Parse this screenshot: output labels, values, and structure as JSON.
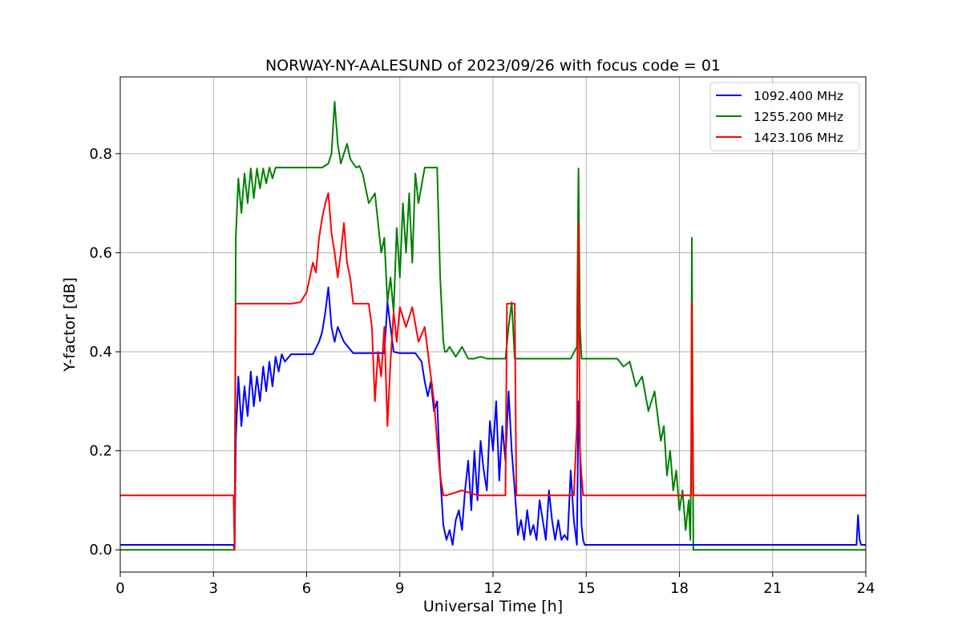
{
  "chart_data": {
    "type": "line",
    "title": "NORWAY-NY-AALESUND of 2023/09/26 with focus code = 01",
    "xlabel": "Universal Time [h]",
    "ylabel": "Y-factor [dB]",
    "xlim": [
      0,
      24
    ],
    "ylim": [
      -0.045,
      0.955
    ],
    "xticks": [
      0,
      3,
      6,
      9,
      12,
      15,
      18,
      21,
      24
    ],
    "xtick_labels": [
      "0",
      "3",
      "6",
      "9",
      "12",
      "15",
      "18",
      "21",
      "24"
    ],
    "yticks": [
      0.0,
      0.2,
      0.4,
      0.6,
      0.8
    ],
    "ytick_labels": [
      "0.0",
      "0.2",
      "0.4",
      "0.6",
      "0.8"
    ],
    "grid": true,
    "legend_position": "top-right",
    "series": [
      {
        "name": "1092.400 MHz",
        "color": "#0000ff",
        "x": [
          0,
          3.65,
          3.68,
          3.72,
          3.8,
          3.9,
          4.0,
          4.1,
          4.2,
          4.3,
          4.4,
          4.5,
          4.6,
          4.7,
          4.8,
          4.9,
          5.0,
          5.1,
          5.2,
          5.3,
          5.5,
          5.8,
          6.2,
          6.4,
          6.5,
          6.6,
          6.7,
          6.8,
          6.9,
          7.0,
          7.2,
          7.5,
          8.0,
          8.5,
          8.6,
          8.7,
          8.8,
          9.0,
          9.5,
          9.7,
          9.8,
          9.9,
          10.0,
          10.1,
          10.2,
          10.3,
          10.35,
          10.4,
          10.5,
          10.6,
          10.7,
          10.8,
          10.9,
          11.0,
          11.1,
          11.2,
          11.3,
          11.4,
          11.5,
          11.6,
          11.7,
          11.8,
          11.9,
          12.0,
          12.1,
          12.2,
          12.3,
          12.4,
          12.5,
          12.6,
          12.7,
          12.8,
          12.9,
          13.0,
          13.1,
          13.2,
          13.3,
          13.4,
          13.5,
          13.6,
          13.7,
          13.8,
          13.9,
          14.0,
          14.1,
          14.2,
          14.3,
          14.4,
          14.5,
          14.6,
          14.7,
          14.75,
          14.8,
          14.85,
          14.9,
          14.95,
          15.0,
          16.0,
          18.0,
          18.4,
          20.0,
          23.0,
          23.7,
          23.75,
          23.8,
          23.85,
          24.0
        ],
        "y": [
          0.01,
          0.01,
          0.0,
          0.22,
          0.35,
          0.25,
          0.33,
          0.27,
          0.36,
          0.29,
          0.35,
          0.3,
          0.37,
          0.32,
          0.38,
          0.33,
          0.39,
          0.36,
          0.395,
          0.38,
          0.395,
          0.395,
          0.395,
          0.42,
          0.44,
          0.48,
          0.53,
          0.45,
          0.42,
          0.45,
          0.42,
          0.397,
          0.397,
          0.397,
          0.5,
          0.45,
          0.4,
          0.397,
          0.397,
          0.38,
          0.34,
          0.31,
          0.34,
          0.28,
          0.3,
          0.15,
          0.1,
          0.05,
          0.02,
          0.04,
          0.01,
          0.06,
          0.08,
          0.04,
          0.12,
          0.18,
          0.08,
          0.2,
          0.1,
          0.22,
          0.16,
          0.12,
          0.26,
          0.2,
          0.3,
          0.14,
          0.25,
          0.18,
          0.32,
          0.2,
          0.12,
          0.03,
          0.06,
          0.02,
          0.08,
          0.03,
          0.05,
          0.02,
          0.1,
          0.06,
          0.02,
          0.12,
          0.06,
          0.02,
          0.06,
          0.02,
          0.03,
          0.02,
          0.16,
          0.06,
          0.01,
          0.3,
          0.2,
          0.05,
          0.02,
          0.01,
          0.01,
          0.01,
          0.01,
          0.01,
          0.01,
          0.01,
          0.01,
          0.07,
          0.02,
          0.01,
          0.01
        ]
      },
      {
        "name": "1255.200 MHz",
        "color": "#008000",
        "x": [
          0,
          3.65,
          3.68,
          3.72,
          3.8,
          3.9,
          4.0,
          4.1,
          4.2,
          4.3,
          4.4,
          4.5,
          4.6,
          4.7,
          4.8,
          4.9,
          5.0,
          5.2,
          5.5,
          6.0,
          6.5,
          6.7,
          6.8,
          6.9,
          7.0,
          7.1,
          7.2,
          7.3,
          7.4,
          7.5,
          7.6,
          7.7,
          7.8,
          8.0,
          8.2,
          8.4,
          8.5,
          8.6,
          8.7,
          8.8,
          8.9,
          9.0,
          9.1,
          9.2,
          9.3,
          9.4,
          9.5,
          9.6,
          9.8,
          10.0,
          10.2,
          10.3,
          10.4,
          10.45,
          10.5,
          10.6,
          10.8,
          11.0,
          11.2,
          11.4,
          11.6,
          11.8,
          12.0,
          12.2,
          12.4,
          12.5,
          12.6,
          12.7,
          12.8,
          13.0,
          13.5,
          14.0,
          14.5,
          14.7,
          14.75,
          14.8,
          14.85,
          14.9,
          15.0,
          15.5,
          16.0,
          16.2,
          16.4,
          16.6,
          16.8,
          17.0,
          17.2,
          17.4,
          17.5,
          17.6,
          17.7,
          17.8,
          17.9,
          18.0,
          18.1,
          18.2,
          18.3,
          18.35,
          18.38,
          18.4,
          18.45,
          19.0,
          24.0
        ],
        "y": [
          0.0,
          0.0,
          0.0,
          0.63,
          0.75,
          0.68,
          0.76,
          0.7,
          0.77,
          0.71,
          0.77,
          0.73,
          0.77,
          0.74,
          0.772,
          0.75,
          0.772,
          0.772,
          0.772,
          0.772,
          0.772,
          0.78,
          0.8,
          0.905,
          0.82,
          0.78,
          0.8,
          0.82,
          0.79,
          0.78,
          0.772,
          0.775,
          0.76,
          0.7,
          0.72,
          0.6,
          0.63,
          0.5,
          0.55,
          0.48,
          0.65,
          0.55,
          0.7,
          0.6,
          0.72,
          0.58,
          0.76,
          0.7,
          0.772,
          0.772,
          0.772,
          0.55,
          0.42,
          0.4,
          0.4,
          0.41,
          0.39,
          0.41,
          0.386,
          0.386,
          0.39,
          0.386,
          0.386,
          0.386,
          0.386,
          0.45,
          0.5,
          0.386,
          0.386,
          0.386,
          0.386,
          0.386,
          0.386,
          0.41,
          0.77,
          0.45,
          0.386,
          0.386,
          0.386,
          0.386,
          0.386,
          0.37,
          0.38,
          0.33,
          0.35,
          0.28,
          0.32,
          0.22,
          0.25,
          0.15,
          0.2,
          0.12,
          0.16,
          0.08,
          0.12,
          0.04,
          0.1,
          0.02,
          0.2,
          0.63,
          0.0,
          0.0,
          0.0
        ]
      },
      {
        "name": "1423.106 MHz",
        "color": "#ff0000",
        "x": [
          0,
          3.65,
          3.68,
          3.72,
          3.8,
          4.0,
          4.5,
          5.0,
          5.5,
          5.8,
          6.0,
          6.1,
          6.2,
          6.3,
          6.4,
          6.5,
          6.6,
          6.7,
          6.8,
          6.9,
          7.0,
          7.1,
          7.2,
          7.3,
          7.4,
          7.5,
          7.8,
          8.0,
          8.1,
          8.2,
          8.3,
          8.4,
          8.5,
          8.6,
          8.7,
          8.8,
          8.9,
          9.0,
          9.2,
          9.4,
          9.6,
          9.8,
          10.0,
          10.1,
          10.2,
          10.3,
          10.4,
          10.5,
          11.0,
          11.5,
          12.0,
          12.4,
          12.45,
          12.7,
          12.75,
          13.0,
          14.0,
          14.6,
          14.7,
          14.75,
          14.8,
          14.85,
          14.9,
          15.0,
          15.5,
          16.0,
          17.0,
          18.0,
          18.35,
          18.38,
          18.4,
          18.45,
          19.0,
          24.0
        ],
        "y": [
          0.11,
          0.11,
          0.0,
          0.497,
          0.497,
          0.497,
          0.497,
          0.497,
          0.497,
          0.5,
          0.52,
          0.55,
          0.58,
          0.56,
          0.63,
          0.67,
          0.7,
          0.72,
          0.64,
          0.6,
          0.55,
          0.6,
          0.66,
          0.58,
          0.55,
          0.497,
          0.497,
          0.497,
          0.45,
          0.3,
          0.4,
          0.35,
          0.45,
          0.25,
          0.38,
          0.48,
          0.42,
          0.49,
          0.45,
          0.49,
          0.42,
          0.45,
          0.35,
          0.3,
          0.22,
          0.15,
          0.11,
          0.11,
          0.12,
          0.11,
          0.11,
          0.11,
          0.497,
          0.497,
          0.11,
          0.11,
          0.11,
          0.11,
          0.25,
          0.66,
          0.2,
          0.15,
          0.11,
          0.11,
          0.11,
          0.11,
          0.11,
          0.11,
          0.11,
          0.11,
          0.5,
          0.11,
          0.11,
          0.11
        ]
      }
    ]
  }
}
